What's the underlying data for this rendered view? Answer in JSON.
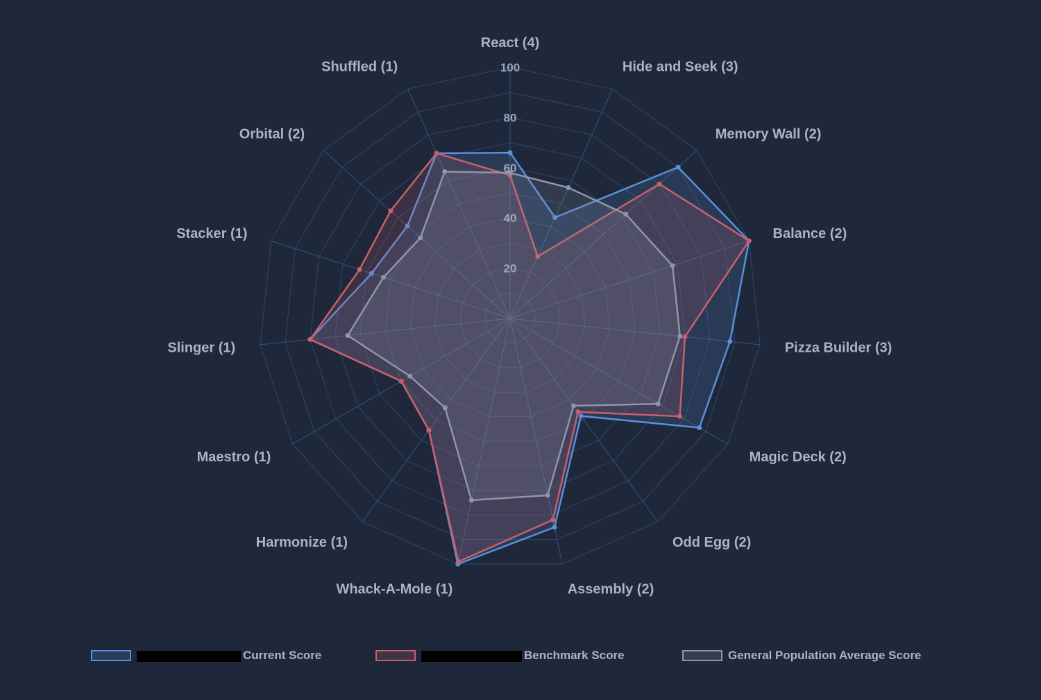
{
  "chart_data": {
    "type": "radar",
    "axes": [
      "React (4)",
      "Hide and Seek (3)",
      "Memory Wall (2)",
      "Balance (2)",
      "Pizza Builder (3)",
      "Magic Deck (2)",
      "Odd Egg (2)",
      "Assembly (2)",
      "Whack-A-Mole (1)",
      "Harmonize (1)",
      "Maestro (1)",
      "Slinger (1)",
      "Stacker (1)",
      "Orbital (2)",
      "Shuffled (1)"
    ],
    "rticks": [
      "20",
      "40",
      "60",
      "80",
      "100"
    ],
    "rlim": [
      0,
      100
    ],
    "grid": true,
    "legend_position": "bottom",
    "series": [
      {
        "name": "Current Score",
        "color": "#5b8fd8",
        "values": [
          66,
          44,
          90,
          100,
          88,
          87,
          48,
          85,
          100,
          55,
          50,
          80,
          58,
          55,
          72
        ]
      },
      {
        "name": "Benchmark Score",
        "color": "#c9606a",
        "values": [
          57,
          27,
          80,
          100,
          70,
          78,
          46,
          82,
          99,
          55,
          50,
          80,
          63,
          64,
          72
        ]
      },
      {
        "name": "General Population Average Score",
        "color": "#8e96a8",
        "values": [
          58,
          57,
          62,
          68,
          68,
          68,
          43,
          72,
          74,
          44,
          46,
          65,
          53,
          48,
          64
        ]
      }
    ]
  }
}
